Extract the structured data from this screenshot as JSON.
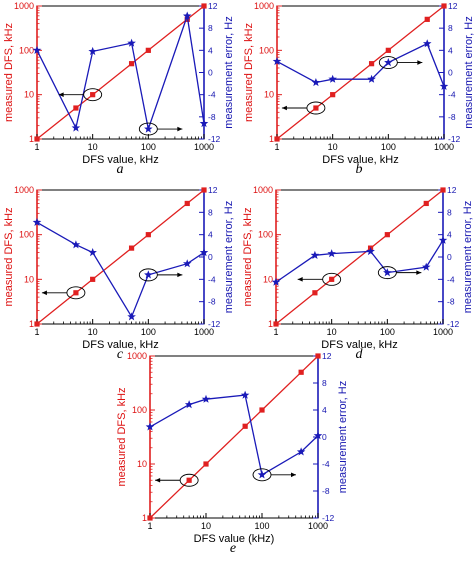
{
  "chart_data": [
    {
      "panel_letter": "a",
      "type": "line",
      "xlabel": "DFS value, kHz",
      "ylabel_left": "measured DFS, kHz",
      "ylabel_right": "measurement error, Hz",
      "x_scale": "log",
      "xlim": [
        1,
        1000
      ],
      "left_scale": "log",
      "ylim_left": [
        1,
        1000
      ],
      "ylim_right": [
        -12,
        12
      ],
      "x_ticks": [
        "1",
        "10",
        "100",
        "1000"
      ],
      "left_ticks": [
        "1",
        "10",
        "100",
        "1000"
      ],
      "right_ticks": [
        "12",
        "8",
        "4",
        "0",
        "-4",
        "-8",
        "-12"
      ],
      "series": [
        {
          "axis": "left",
          "color": "#e02020",
          "marker": "square",
          "x": [
            1,
            5,
            10,
            50,
            100,
            500,
            1000
          ],
          "y": [
            1,
            5,
            10,
            50,
            100,
            500,
            1000
          ]
        },
        {
          "axis": "right",
          "color": "#1a1ab8",
          "marker": "star",
          "x": [
            1,
            5,
            10,
            50,
            100,
            500,
            1000
          ],
          "y": [
            4,
            -10,
            3.8,
            5.3,
            -10.2,
            10.2,
            -9.2
          ]
        }
      ],
      "annotations": [
        {
          "ellipse_x": 10,
          "ellipse_y": 10,
          "axis": "left",
          "arrow": "left"
        },
        {
          "ellipse_x": 100,
          "ellipse_y": -10.2,
          "axis": "right",
          "arrow": "right"
        }
      ]
    },
    {
      "panel_letter": "b",
      "type": "line",
      "xlabel": "DFS value, kHz",
      "ylabel_left": "measured DFS, kHz",
      "ylabel_right": "measurement error, Hz",
      "x_scale": "log",
      "xlim": [
        1,
        1000
      ],
      "left_scale": "log",
      "ylim_left": [
        1,
        1000
      ],
      "ylim_right": [
        -12,
        12
      ],
      "x_ticks": [
        "1",
        "10",
        "100",
        "1000"
      ],
      "left_ticks": [
        "1",
        "10",
        "100",
        "1000"
      ],
      "right_ticks": [
        "12",
        "8",
        "4",
        "0",
        "-4",
        "-8",
        "-12"
      ],
      "series": [
        {
          "axis": "left",
          "color": "#e02020",
          "marker": "square",
          "x": [
            1,
            5,
            10,
            50,
            100,
            500,
            1000
          ],
          "y": [
            1,
            5,
            10,
            50,
            100,
            500,
            1000
          ]
        },
        {
          "axis": "right",
          "color": "#1a1ab8",
          "marker": "star",
          "x": [
            1,
            5,
            10,
            50,
            100,
            500,
            1000
          ],
          "y": [
            2,
            -1.8,
            -1.2,
            -1.2,
            1.8,
            5.2,
            -2.5
          ]
        }
      ],
      "annotations": [
        {
          "ellipse_x": 5,
          "ellipse_y": 5,
          "axis": "left",
          "arrow": "left"
        },
        {
          "ellipse_x": 100,
          "ellipse_y": 1.8,
          "axis": "right",
          "arrow": "right"
        }
      ]
    },
    {
      "panel_letter": "c",
      "type": "line",
      "xlabel": "DFS value, kHz",
      "ylabel_left": "measured DFS, kHz",
      "ylabel_right": "measurement error, Hz",
      "x_scale": "log",
      "xlim": [
        1,
        1000
      ],
      "left_scale": "log",
      "ylim_left": [
        1,
        1000
      ],
      "ylim_right": [
        -12,
        12
      ],
      "x_ticks": [
        "1",
        "10",
        "100",
        "1000"
      ],
      "left_ticks": [
        "1",
        "10",
        "100",
        "1000"
      ],
      "right_ticks": [
        "12",
        "8",
        "4",
        "0",
        "-4",
        "-8",
        "-12"
      ],
      "series": [
        {
          "axis": "left",
          "color": "#e02020",
          "marker": "square",
          "x": [
            1,
            5,
            10,
            50,
            100,
            500,
            1000
          ],
          "y": [
            1,
            5,
            10,
            50,
            100,
            500,
            1000
          ]
        },
        {
          "axis": "right",
          "color": "#1a1ab8",
          "marker": "star",
          "x": [
            1,
            5,
            10,
            50,
            100,
            500,
            1000
          ],
          "y": [
            6.2,
            2.2,
            0.8,
            -10.7,
            -3.2,
            -1.2,
            0.8
          ]
        }
      ],
      "annotations": [
        {
          "ellipse_x": 5,
          "ellipse_y": 5,
          "axis": "left",
          "arrow": "left"
        },
        {
          "ellipse_x": 100,
          "ellipse_y": -3.2,
          "axis": "right",
          "arrow": "right"
        }
      ]
    },
    {
      "panel_letter": "d",
      "type": "line",
      "xlabel": "DFS value, kHz",
      "ylabel_left": "measured DFS, kHz",
      "ylabel_right": "measurement error, Hz",
      "x_scale": "log",
      "xlim": [
        1,
        1000
      ],
      "left_scale": "log",
      "ylim_left": [
        1,
        1000
      ],
      "ylim_right": [
        -12,
        12
      ],
      "x_ticks": [
        "1",
        "10",
        "100",
        "1000"
      ],
      "left_ticks": [
        "1",
        "10",
        "100",
        "1000"
      ],
      "right_ticks": [
        "12",
        "8",
        "4",
        "0",
        "-4",
        "-8",
        "-12"
      ],
      "series": [
        {
          "axis": "left",
          "color": "#e02020",
          "marker": "square",
          "x": [
            1,
            5,
            10,
            50,
            100,
            500,
            1000
          ],
          "y": [
            1,
            5,
            10,
            50,
            100,
            500,
            1000
          ]
        },
        {
          "axis": "right",
          "color": "#1a1ab8",
          "marker": "star",
          "x": [
            1,
            5,
            10,
            50,
            100,
            500,
            1000
          ],
          "y": [
            -4.5,
            0.3,
            0.6,
            1.0,
            -2.8,
            -1.8,
            3.0
          ]
        }
      ],
      "annotations": [
        {
          "ellipse_x": 10,
          "ellipse_y": 10,
          "axis": "left",
          "arrow": "left"
        },
        {
          "ellipse_x": 100,
          "ellipse_y": -2.8,
          "axis": "right",
          "arrow": "right"
        }
      ]
    },
    {
      "panel_letter": "e",
      "type": "line",
      "xlabel": "DFS value (kHz)",
      "ylabel_left": "measured DFS, kHz",
      "ylabel_right": "measurement error, Hz",
      "x_scale": "log",
      "xlim": [
        1,
        1000
      ],
      "left_scale": "log",
      "ylim_left": [
        1,
        1000
      ],
      "ylim_right": [
        -12,
        12
      ],
      "x_ticks": [
        "1",
        "10",
        "100",
        "1000"
      ],
      "left_ticks": [
        "1",
        "10",
        "100",
        "1000"
      ],
      "right_ticks": [
        "12",
        "8",
        "4",
        "0",
        "-4",
        "-8",
        "-12"
      ],
      "series": [
        {
          "axis": "left",
          "color": "#e02020",
          "marker": "square",
          "x": [
            1,
            5,
            10,
            50,
            100,
            500,
            1000
          ],
          "y": [
            1,
            5,
            10,
            50,
            100,
            500,
            1000
          ]
        },
        {
          "axis": "right",
          "color": "#1a1ab8",
          "marker": "star",
          "x": [
            1,
            5,
            10,
            50,
            100,
            500,
            1000
          ],
          "y": [
            1.5,
            4.8,
            5.6,
            6.2,
            -5.6,
            -2.2,
            0.2
          ]
        }
      ],
      "annotations": [
        {
          "ellipse_x": 5,
          "ellipse_y": 5,
          "axis": "left",
          "arrow": "left"
        },
        {
          "ellipse_x": 100,
          "ellipse_y": -5.6,
          "axis": "right",
          "arrow": "right"
        }
      ]
    }
  ]
}
